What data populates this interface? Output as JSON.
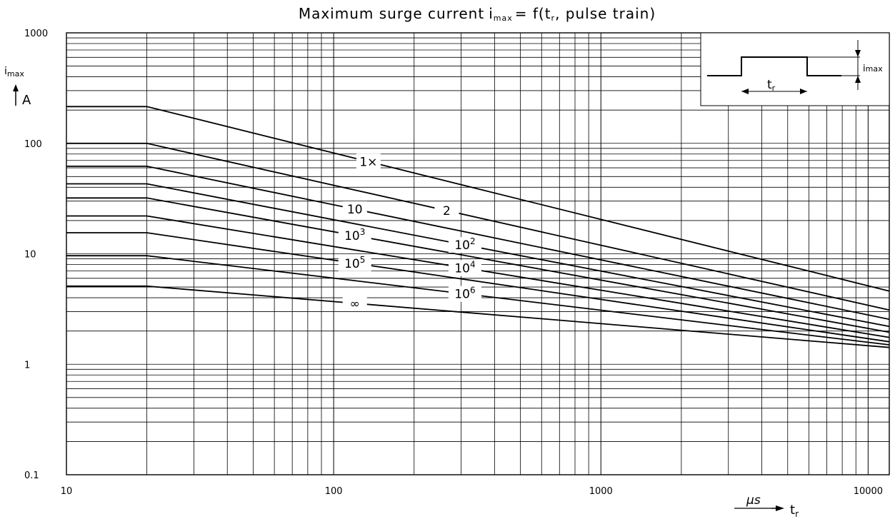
{
  "chart_data": {
    "type": "line",
    "title_main": "Maximum surge current",
    "title_sym": "i",
    "title_sym_sub": "max",
    "title_eq": "= f(t",
    "title_eq_sub": "r",
    "title_rest": ", pulse train)",
    "ylabel_sym": "i",
    "ylabel_sub": "max",
    "ylabel_unit": "A",
    "xlabel_unit": "µs",
    "xlabel_sym": "t",
    "xlabel_sub": "r",
    "xscale": "log",
    "yscale": "log",
    "xlim": [
      10,
      12000
    ],
    "ylim": [
      0.1,
      1000
    ],
    "grid": true,
    "x_ticks": [
      {
        "value": 10,
        "label": "10"
      },
      {
        "value": 100,
        "label": "100"
      },
      {
        "value": 1000,
        "label": "1000"
      },
      {
        "value": 10000,
        "label": "10000"
      }
    ],
    "y_ticks": [
      {
        "value": 0.1,
        "label": "0.1"
      },
      {
        "value": 1,
        "label": "1"
      },
      {
        "value": 10,
        "label": "10"
      },
      {
        "value": 100,
        "label": "100"
      },
      {
        "value": 1000,
        "label": "1000"
      }
    ],
    "series": [
      {
        "name": "1×",
        "name_sup": "",
        "x": [
          10,
          20,
          12000
        ],
        "y": [
          215,
          215,
          4.6
        ],
        "label_at": [
          135,
          0.9
        ]
      },
      {
        "name": "2",
        "name_sup": "",
        "x": [
          10,
          20,
          12000
        ],
        "y": [
          100,
          100,
          3.1
        ],
        "label_at": [
          265,
          0.8
        ]
      },
      {
        "name": "10",
        "name_sup": "",
        "x": [
          10,
          20,
          12000
        ],
        "y": [
          62,
          62,
          2.55
        ],
        "label_at": [
          120,
          0.9
        ]
      },
      {
        "name": "10",
        "name_sup": "2",
        "x": [
          10,
          20,
          12000
        ],
        "y": [
          43,
          43,
          2.2
        ],
        "label_at": [
          310,
          0.9
        ]
      },
      {
        "name": "10",
        "name_sup": "3",
        "x": [
          10,
          20,
          12000
        ],
        "y": [
          32,
          32,
          1.95
        ],
        "label_at": [
          120,
          0.9
        ]
      },
      {
        "name": "10",
        "name_sup": "4",
        "x": [
          10,
          20,
          12000
        ],
        "y": [
          22,
          22,
          1.75
        ],
        "label_at": [
          310,
          0.9
        ]
      },
      {
        "name": "10",
        "name_sup": "5",
        "x": [
          10,
          20,
          12000
        ],
        "y": [
          15.5,
          15.5,
          1.6
        ],
        "label_at": [
          120,
          0.9
        ]
      },
      {
        "name": "10",
        "name_sup": "6",
        "x": [
          10,
          20,
          12000
        ],
        "y": [
          9.6,
          9.6,
          1.5
        ],
        "label_at": [
          310,
          0.9
        ]
      },
      {
        "name": "∞",
        "name_sup": "",
        "x": [
          10,
          20,
          12000
        ],
        "y": [
          5.1,
          5.1,
          1.42
        ],
        "label_at": [
          120,
          0.9
        ]
      }
    ],
    "inset": {
      "t_sym": "t",
      "t_sub": "r",
      "i_sym": "i",
      "i_sub": "max"
    }
  }
}
